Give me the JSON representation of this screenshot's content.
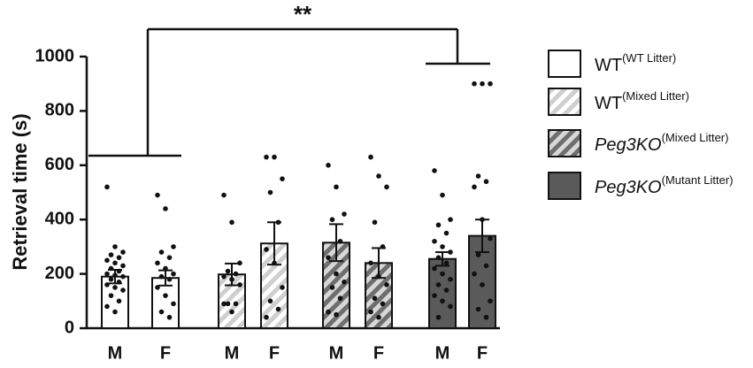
{
  "chart_data": {
    "type": "bar",
    "y_label": "Retrieval time (s)",
    "annotation": "**",
    "categories": [
      "M",
      "F"
    ],
    "ylim": [
      0,
      1000
    ],
    "yticks": [
      0,
      200,
      400,
      600,
      800,
      1000
    ],
    "series": [
      {
        "name": "WT",
        "superscript": "(WT Litter)",
        "italic": false,
        "color": "#ffffff",
        "hatch": false,
        "values": [
          190,
          185
        ],
        "errors": [
          25,
          28
        ],
        "points": [
          [
            520,
            300,
            280,
            270,
            260,
            250,
            240,
            230,
            220,
            210,
            200,
            195,
            190,
            180,
            170,
            160,
            150,
            140,
            120,
            100,
            80,
            60
          ],
          [
            490,
            440,
            300,
            280,
            260,
            240,
            220,
            200,
            190,
            180,
            150,
            120,
            90,
            60,
            40
          ]
        ]
      },
      {
        "name": "WT",
        "superscript": "(Mixed Litter)",
        "italic": false,
        "color": "#cfcfcf",
        "hatch": true,
        "values": [
          198,
          312
        ],
        "errors": [
          40,
          78
        ],
        "points": [
          [
            490,
            390,
            240,
            210,
            200,
            190,
            180,
            160,
            90,
            90,
            90,
            60
          ],
          [
            630,
            630,
            550,
            500,
            390,
            290,
            240,
            150,
            100,
            70,
            40
          ]
        ]
      },
      {
        "name": "Peg3KO",
        "superscript": "(Mixed Litter)",
        "italic": true,
        "color": "#6e6e6e",
        "hatch": true,
        "values": [
          315,
          240
        ],
        "errors": [
          68,
          55
        ],
        "points": [
          [
            600,
            520,
            420,
            400,
            320,
            260,
            200,
            170,
            150,
            110,
            60,
            50
          ],
          [
            630,
            560,
            520,
            390,
            300,
            240,
            190,
            160,
            110,
            90,
            60,
            40
          ]
        ]
      },
      {
        "name": "Peg3KO",
        "superscript": "(Mutant Litter)",
        "italic": true,
        "color": "#5a5a5a",
        "hatch": false,
        "values": [
          255,
          340
        ],
        "errors": [
          25,
          60
        ],
        "points": [
          [
            580,
            490,
            400,
            380,
            350,
            320,
            300,
            280,
            260,
            240,
            220,
            200,
            180,
            160,
            140,
            120,
            100,
            80,
            40
          ],
          [
            900,
            900,
            900,
            560,
            540,
            520,
            400,
            330,
            270,
            230,
            200,
            160,
            100,
            70,
            40
          ]
        ]
      }
    ]
  }
}
